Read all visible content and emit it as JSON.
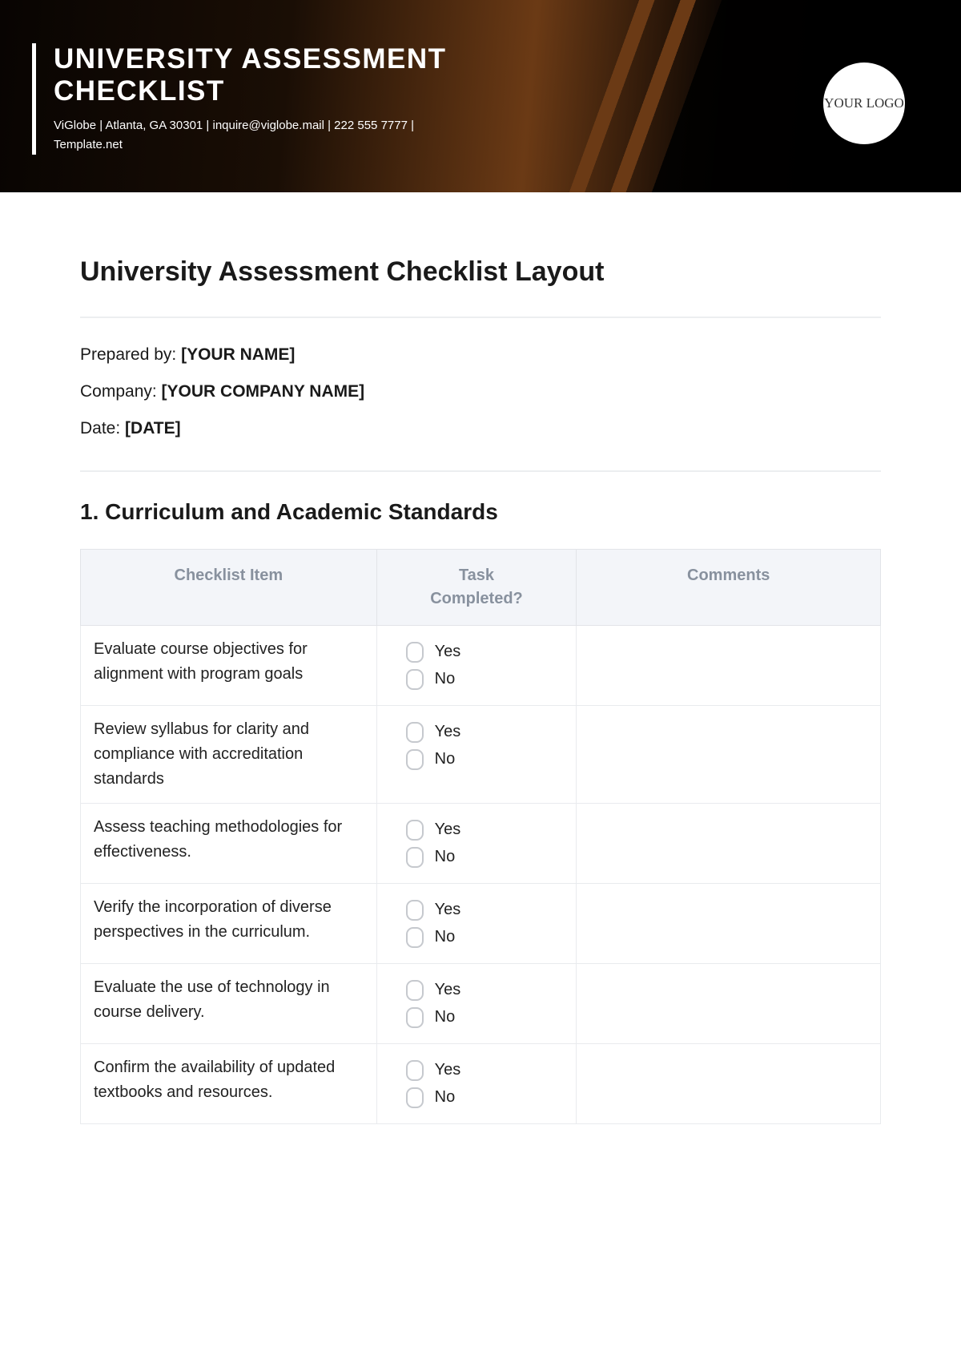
{
  "banner": {
    "title_line1": "UNIVERSITY ASSESSMENT",
    "title_line2": "CHECKLIST",
    "subtitle": "ViGlobe | Atlanta, GA 30301 | inquire@viglobe.mail | 222 555 7777 | Template.net",
    "logo_text": "YOUR LOGO"
  },
  "doc": {
    "title": "University Assessment Checklist Layout",
    "meta": [
      {
        "label": "Prepared by: ",
        "value": "[YOUR NAME]"
      },
      {
        "label": "Company: ",
        "value": "[YOUR COMPANY NAME]"
      },
      {
        "label": "Date: ",
        "value": "[DATE]"
      }
    ]
  },
  "section1": {
    "heading": "1. Curriculum and Academic Standards",
    "headers": {
      "item": "Checklist Item",
      "task_line1": "Task",
      "task_line2": "Completed?",
      "comments": "Comments"
    },
    "options": {
      "yes": "Yes",
      "no": "No"
    },
    "rows": [
      {
        "item": "Evaluate course objectives for alignment with program goals",
        "comments": ""
      },
      {
        "item": "Review syllabus for clarity and compliance with accreditation standards",
        "comments": ""
      },
      {
        "item": "Assess teaching methodologies for effectiveness.",
        "comments": ""
      },
      {
        "item": "Verify the incorporation of diverse perspectives in the curriculum.",
        "comments": ""
      },
      {
        "item": "Evaluate the use of technology in course delivery.",
        "comments": ""
      },
      {
        "item": "Confirm the availability of updated textbooks and resources.",
        "comments": ""
      }
    ]
  },
  "style": {
    "banner_gradient_from": "#080402",
    "banner_gradient_mid": "#6b3a15",
    "header_bg": "#f3f5f9",
    "header_text": "#88919e",
    "border_color": "#e9ebee",
    "checkbox_border": "#c6c9ce"
  }
}
